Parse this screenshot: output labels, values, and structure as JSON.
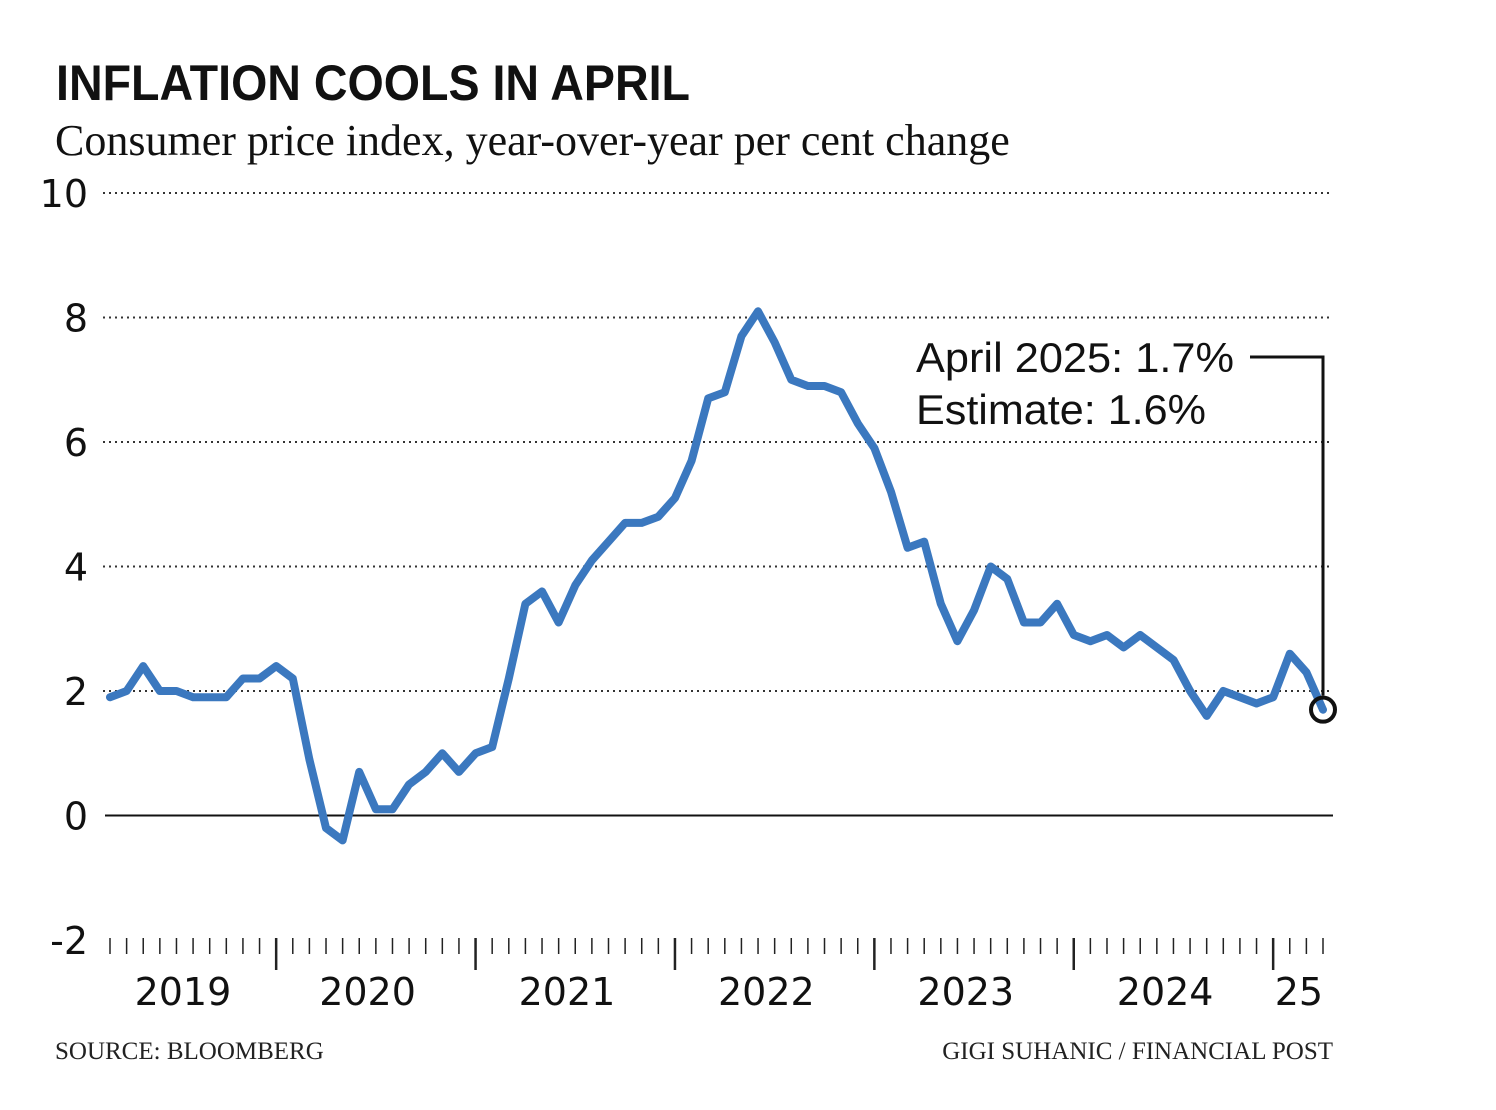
{
  "chart_data": {
    "type": "line",
    "title": "INFLATION COOLS IN APRIL",
    "subtitle": "Consumer price index, year-over-year per cent change",
    "categories": [
      null,
      null,
      null,
      null,
      null,
      null,
      null,
      null,
      null,
      null,
      null,
      null,
      null,
      null,
      null,
      null,
      null,
      null,
      null,
      null,
      null,
      null,
      null,
      null,
      null,
      null,
      null,
      null,
      null,
      null,
      null,
      null,
      null,
      null,
      null,
      null,
      null,
      null,
      null,
      null,
      null,
      null,
      null,
      null,
      null,
      null,
      null,
      null,
      null,
      null,
      null,
      null,
      null,
      null,
      null,
      null,
      null,
      null,
      null,
      null,
      null,
      null,
      null,
      null,
      null,
      null,
      null,
      null,
      null,
      null,
      null,
      null,
      null,
      null
    ],
    "year_labels": [
      "2019",
      "2020",
      "2021",
      "2022",
      "2023",
      "2024",
      "25"
    ],
    "series": [
      {
        "name": "CPI",
        "color": "#3b78bf",
        "values": [
          1.9,
          2.0,
          2.4,
          2.0,
          2.0,
          1.9,
          1.9,
          1.9,
          2.2,
          2.2,
          2.4,
          2.2,
          0.9,
          -0.2,
          -0.4,
          0.7,
          0.1,
          0.1,
          0.5,
          0.7,
          1.0,
          0.7,
          1.0,
          1.1,
          2.2,
          3.4,
          3.6,
          3.1,
          3.7,
          4.1,
          4.4,
          4.7,
          4.7,
          4.8,
          5.1,
          5.7,
          6.7,
          6.8,
          7.7,
          8.1,
          7.6,
          7.0,
          6.9,
          6.9,
          6.8,
          6.3,
          5.9,
          5.2,
          4.3,
          4.4,
          3.4,
          2.8,
          3.3,
          4.0,
          3.8,
          3.1,
          3.1,
          3.4,
          2.9,
          2.8,
          2.9,
          2.7,
          2.9,
          2.7,
          2.5,
          2.0,
          1.6,
          2.0,
          1.9,
          1.8,
          1.9,
          2.6,
          2.3,
          1.7
        ]
      }
    ],
    "ylim": [
      -2,
      10
    ],
    "yticks": [
      -2,
      0,
      2,
      4,
      6,
      8,
      10
    ],
    "grid": true,
    "annotations": [
      "April 2025: 1.7%",
      "Estimate: 1.6%"
    ],
    "source": "SOURCE: BLOOMBERG",
    "credit": "GIGI SUHANIC / FINANCIAL POST"
  }
}
